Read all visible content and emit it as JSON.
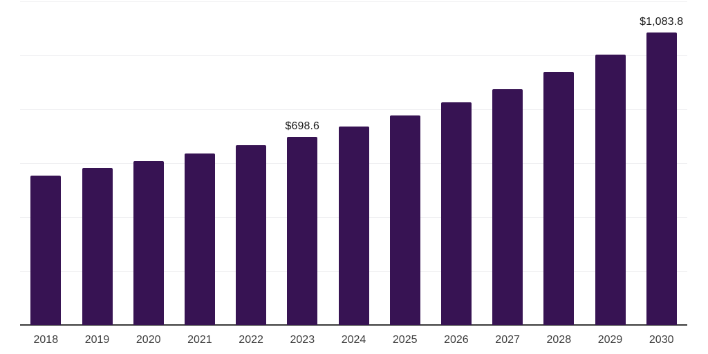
{
  "chart_data": {
    "type": "bar",
    "title": "",
    "xlabel": "",
    "ylabel": "",
    "categories": [
      "2018",
      "2019",
      "2020",
      "2021",
      "2022",
      "2023",
      "2024",
      "2025",
      "2026",
      "2027",
      "2028",
      "2029",
      "2030"
    ],
    "values": [
      555,
      581,
      607,
      635,
      667,
      698.6,
      737,
      776,
      826,
      875,
      939,
      1003,
      1083.8
    ],
    "data_labels": [
      null,
      null,
      null,
      null,
      null,
      "$698.6",
      null,
      null,
      null,
      null,
      null,
      null,
      "$1,083.8"
    ],
    "ylim": [
      0,
      1200
    ],
    "gridline_step": 200,
    "grid": true,
    "legend": "none",
    "y_axis_labels_visible": false,
    "colors": {
      "bar": "#371353",
      "axis_line": "#3a3a3a",
      "gridline": "#f0f0f2",
      "tick_label": "#3d3d3d",
      "data_label": "#1a1a1a",
      "background": "#ffffff"
    }
  }
}
